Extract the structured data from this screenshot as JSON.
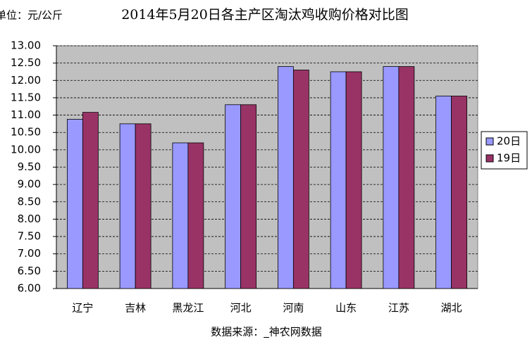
{
  "chart_data": {
    "type": "bar",
    "title": "2014年5月20日各主产区淘汰鸡收购价格对比图",
    "unit_label": "单位：元/公斤",
    "source": "数据来源：_神农网数据",
    "categories": [
      "辽宁",
      "吉林",
      "黑龙江",
      "河北",
      "河南",
      "山东",
      "江苏",
      "湖北"
    ],
    "series": [
      {
        "name": "20日",
        "color": "#9999ff",
        "values": [
          10.88,
          10.75,
          10.2,
          11.3,
          12.4,
          12.25,
          12.4,
          11.55
        ]
      },
      {
        "name": "19日",
        "color": "#993366",
        "values": [
          11.08,
          10.75,
          10.2,
          11.3,
          12.3,
          12.25,
          12.4,
          11.55
        ]
      }
    ],
    "ylim": [
      6,
      13
    ],
    "yticks": [
      {
        "value": 6,
        "label": "6.00"
      },
      {
        "value": 6.5,
        "label": "6.50"
      },
      {
        "value": 7,
        "label": "7.00"
      },
      {
        "value": 7.5,
        "label": "7.50"
      },
      {
        "value": 8,
        "label": "8.00"
      },
      {
        "value": 8.5,
        "label": "8.50"
      },
      {
        "value": 9,
        "label": "9.00"
      },
      {
        "value": 9.5,
        "label": "9.50"
      },
      {
        "value": 10,
        "label": "10.00"
      },
      {
        "value": 10.5,
        "label": "10.50"
      },
      {
        "value": 11,
        "label": "11.00"
      },
      {
        "value": 11.5,
        "label": "11.50"
      },
      {
        "value": 12,
        "label": "12.00"
      },
      {
        "value": 12.5,
        "label": "12.50"
      },
      {
        "value": 13,
        "label": "13.00"
      }
    ],
    "grid": true,
    "legend": "right"
  }
}
